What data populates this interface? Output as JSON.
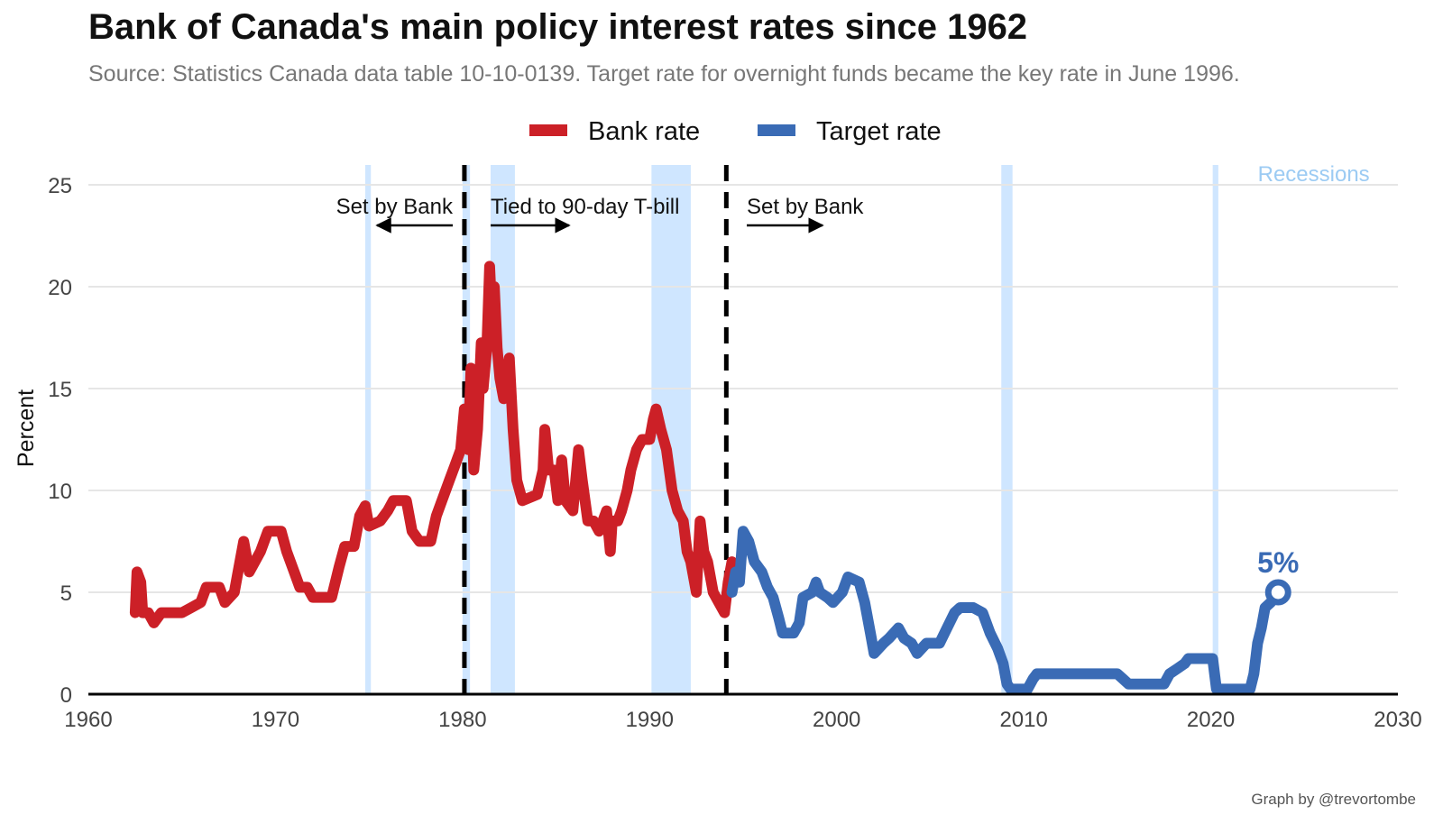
{
  "title": "Bank of Canada's main policy interest rates since 1962",
  "subtitle": "Source: Statistics Canada data table 10-10-0139. Target rate for overnight funds became the key rate in June 1996.",
  "credit": "Graph by @trevortombe",
  "colors": {
    "bank_rate": "#cc2027",
    "target_rate": "#3a6bb5",
    "recession": "#cfe6ff",
    "recession_label": "#9ccbf3",
    "grid": "#e6e6e6"
  },
  "chart_data": {
    "type": "line",
    "ylabel": "Percent",
    "xlim": [
      1960,
      2030
    ],
    "ylim": [
      0,
      25
    ],
    "x_ticks": [
      "1960",
      "1970",
      "1980",
      "1990",
      "2000",
      "2010",
      "2020",
      "2030"
    ],
    "y_ticks": [
      "0",
      "5",
      "10",
      "15",
      "20",
      "25"
    ],
    "legend": {
      "position": "top",
      "entries": [
        "Bank rate",
        "Target rate"
      ]
    },
    "recessions_label": "Recessions",
    "recessions": [
      [
        1974.8,
        1975.1
      ],
      [
        1980.0,
        1980.4
      ],
      [
        1981.5,
        1982.8
      ],
      [
        1990.1,
        1992.2
      ],
      [
        2008.8,
        2009.4
      ],
      [
        2020.1,
        2020.4
      ]
    ],
    "regime_lines": [
      1980.1,
      1994.1
    ],
    "annotations": [
      {
        "text": "Set by Bank",
        "direction": "left"
      },
      {
        "text": "Tied to 90-day T-bill",
        "direction": "right"
      },
      {
        "text": "Set by Bank",
        "direction": "right"
      }
    ],
    "end_label": "5%",
    "end_point": {
      "x": 2023.6,
      "y": 5.0
    },
    "series": [
      {
        "name": "Bank rate",
        "points": [
          [
            1962.5,
            4.0
          ],
          [
            1962.6,
            6.0
          ],
          [
            1962.8,
            5.5
          ],
          [
            1962.9,
            4.0
          ],
          [
            1963.2,
            4.0
          ],
          [
            1963.5,
            3.5
          ],
          [
            1963.9,
            4.0
          ],
          [
            1965.0,
            4.0
          ],
          [
            1965.5,
            4.25
          ],
          [
            1966.0,
            4.5
          ],
          [
            1966.3,
            5.25
          ],
          [
            1967.0,
            5.25
          ],
          [
            1967.3,
            4.5
          ],
          [
            1967.8,
            5.0
          ],
          [
            1968.0,
            6.0
          ],
          [
            1968.3,
            7.5
          ],
          [
            1968.6,
            6.0
          ],
          [
            1968.9,
            6.5
          ],
          [
            1969.2,
            7.0
          ],
          [
            1969.6,
            8.0
          ],
          [
            1970.3,
            8.0
          ],
          [
            1970.6,
            7.0
          ],
          [
            1971.0,
            6.0
          ],
          [
            1971.3,
            5.25
          ],
          [
            1971.7,
            5.25
          ],
          [
            1972.0,
            4.75
          ],
          [
            1973.0,
            4.75
          ],
          [
            1973.4,
            6.25
          ],
          [
            1973.7,
            7.25
          ],
          [
            1974.2,
            7.25
          ],
          [
            1974.5,
            8.75
          ],
          [
            1974.8,
            9.25
          ],
          [
            1975.0,
            8.25
          ],
          [
            1975.6,
            8.5
          ],
          [
            1976.0,
            9.0
          ],
          [
            1976.3,
            9.5
          ],
          [
            1977.0,
            9.5
          ],
          [
            1977.3,
            8.0
          ],
          [
            1977.7,
            7.5
          ],
          [
            1978.3,
            7.5
          ],
          [
            1978.6,
            8.75
          ],
          [
            1978.9,
            9.5
          ],
          [
            1979.3,
            10.5
          ],
          [
            1979.6,
            11.25
          ],
          [
            1979.9,
            12.0
          ],
          [
            1980.1,
            14.0
          ],
          [
            1980.3,
            12.0
          ],
          [
            1980.45,
            16.0
          ],
          [
            1980.6,
            11.0
          ],
          [
            1980.8,
            13.0
          ],
          [
            1981.0,
            17.25
          ],
          [
            1981.1,
            15.0
          ],
          [
            1981.3,
            17.0
          ],
          [
            1981.45,
            21.0
          ],
          [
            1981.6,
            18.0
          ],
          [
            1981.7,
            20.0
          ],
          [
            1981.85,
            17.0
          ],
          [
            1982.0,
            15.5
          ],
          [
            1982.2,
            14.5
          ],
          [
            1982.5,
            16.5
          ],
          [
            1982.7,
            13.0
          ],
          [
            1982.9,
            10.5
          ],
          [
            1983.2,
            9.5
          ],
          [
            1984.0,
            9.8
          ],
          [
            1984.3,
            11.0
          ],
          [
            1984.4,
            13.0
          ],
          [
            1984.6,
            11.0
          ],
          [
            1984.9,
            11.0
          ],
          [
            1985.1,
            9.5
          ],
          [
            1985.3,
            11.5
          ],
          [
            1985.5,
            9.5
          ],
          [
            1985.9,
            9.0
          ],
          [
            1986.0,
            10.0
          ],
          [
            1986.2,
            12.0
          ],
          [
            1986.4,
            10.5
          ],
          [
            1986.7,
            8.5
          ],
          [
            1987.0,
            8.5
          ],
          [
            1987.3,
            8.0
          ],
          [
            1987.7,
            9.0
          ],
          [
            1987.9,
            7.0
          ],
          [
            1988.0,
            8.5
          ],
          [
            1988.3,
            8.5
          ],
          [
            1988.5,
            9.0
          ],
          [
            1988.8,
            10.0
          ],
          [
            1989.0,
            11.0
          ],
          [
            1989.3,
            12.0
          ],
          [
            1989.6,
            12.5
          ],
          [
            1990.0,
            12.5
          ],
          [
            1990.2,
            13.5
          ],
          [
            1990.35,
            14.0
          ],
          [
            1990.6,
            13.0
          ],
          [
            1990.9,
            12.0
          ],
          [
            1991.2,
            10.0
          ],
          [
            1991.5,
            9.0
          ],
          [
            1991.8,
            8.5
          ],
          [
            1992.0,
            7.0
          ],
          [
            1992.2,
            6.5
          ],
          [
            1992.5,
            5.0
          ],
          [
            1992.7,
            8.5
          ],
          [
            1992.9,
            7.0
          ],
          [
            1993.1,
            6.5
          ],
          [
            1993.4,
            5.0
          ],
          [
            1993.7,
            4.5
          ],
          [
            1994.0,
            4.0
          ],
          [
            1994.2,
            5.5
          ],
          [
            1994.4,
            6.5
          ]
        ]
      },
      {
        "name": "Target rate",
        "points": [
          [
            1994.4,
            5.0
          ],
          [
            1994.6,
            6.0
          ],
          [
            1994.8,
            5.5
          ],
          [
            1995.0,
            8.0
          ],
          [
            1995.3,
            7.5
          ],
          [
            1995.6,
            6.5
          ],
          [
            1996.0,
            6.0
          ],
          [
            1996.3,
            5.25
          ],
          [
            1996.6,
            4.75
          ],
          [
            1996.9,
            3.75
          ],
          [
            1997.1,
            3.0
          ],
          [
            1997.7,
            3.0
          ],
          [
            1998.0,
            3.5
          ],
          [
            1998.2,
            4.75
          ],
          [
            1998.7,
            5.0
          ],
          [
            1998.9,
            5.5
          ],
          [
            1999.1,
            5.0
          ],
          [
            1999.5,
            4.75
          ],
          [
            1999.8,
            4.5
          ],
          [
            2000.3,
            5.0
          ],
          [
            2000.6,
            5.75
          ],
          [
            2001.2,
            5.5
          ],
          [
            2001.5,
            4.5
          ],
          [
            2001.8,
            3.0
          ],
          [
            2002.0,
            2.0
          ],
          [
            2002.5,
            2.5
          ],
          [
            2002.8,
            2.75
          ],
          [
            2003.3,
            3.25
          ],
          [
            2003.6,
            2.75
          ],
          [
            2004.0,
            2.5
          ],
          [
            2004.3,
            2.0
          ],
          [
            2004.8,
            2.5
          ],
          [
            2005.5,
            2.5
          ],
          [
            2005.9,
            3.25
          ],
          [
            2006.3,
            4.0
          ],
          [
            2006.6,
            4.25
          ],
          [
            2007.3,
            4.25
          ],
          [
            2007.8,
            4.0
          ],
          [
            2008.2,
            3.0
          ],
          [
            2008.6,
            2.25
          ],
          [
            2008.9,
            1.5
          ],
          [
            2009.1,
            0.5
          ],
          [
            2009.3,
            0.25
          ],
          [
            2010.2,
            0.25
          ],
          [
            2010.5,
            0.75
          ],
          [
            2010.7,
            1.0
          ],
          [
            2015.0,
            1.0
          ],
          [
            2015.3,
            0.75
          ],
          [
            2015.6,
            0.5
          ],
          [
            2017.5,
            0.5
          ],
          [
            2017.8,
            1.0
          ],
          [
            2018.2,
            1.25
          ],
          [
            2018.6,
            1.5
          ],
          [
            2018.8,
            1.75
          ],
          [
            2020.1,
            1.75
          ],
          [
            2020.3,
            0.25
          ],
          [
            2022.1,
            0.25
          ],
          [
            2022.3,
            1.0
          ],
          [
            2022.5,
            2.5
          ],
          [
            2022.7,
            3.25
          ],
          [
            2022.9,
            4.25
          ],
          [
            2023.2,
            4.5
          ],
          [
            2023.6,
            5.0
          ]
        ]
      }
    ]
  }
}
